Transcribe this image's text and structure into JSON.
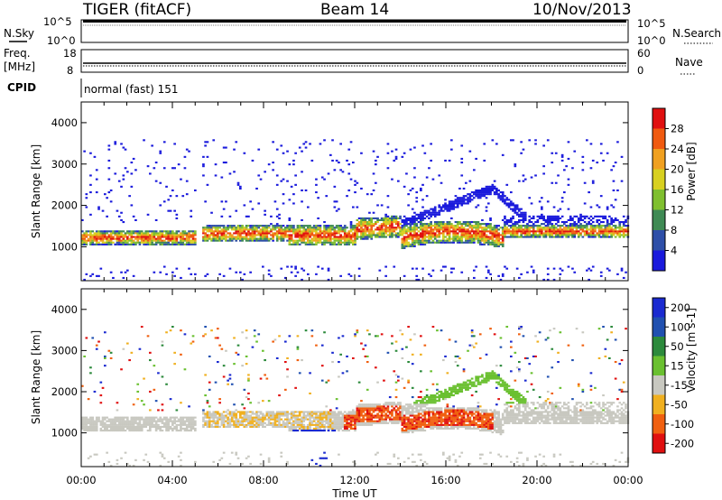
{
  "header": {
    "station": "TIGER (fitACF)",
    "beam": "Beam 14",
    "date": "10/Nov/2013"
  },
  "status_panels": {
    "nsky": {
      "label": "N.Sky",
      "ticks": [
        "10^5",
        "10^0"
      ]
    },
    "nsearch": {
      "label": "N.Search",
      "ticks": [
        "10^5",
        "10^0"
      ]
    },
    "freq": {
      "label_line1": "Freq.",
      "label_line2": "[MHz]",
      "ticks": [
        "18",
        "8"
      ]
    },
    "nave": {
      "label": "Nave",
      "ticks": [
        "60",
        "0"
      ]
    },
    "cpid": {
      "label": "CPID",
      "value": "normal (fast) 151"
    }
  },
  "chart_data": [
    {
      "type": "heatmap",
      "title": "",
      "parameter": "Power",
      "unit": "dB",
      "colorbar_label": "Power [dB]",
      "ylabel": "Slant Range [km]",
      "xlabel": "Time UT",
      "x_ticks": [
        "00:00",
        "04:00",
        "08:00",
        "12:00",
        "16:00",
        "20:00",
        "00:00"
      ],
      "y_ticks": [
        "1000",
        "2000",
        "3000",
        "4000"
      ],
      "xlim_hours": [
        0,
        24
      ],
      "ylim_km": [
        180,
        4500
      ],
      "colorbar_ticks": [
        "4",
        "8",
        "12",
        "16",
        "20",
        "24",
        "28"
      ],
      "colorbar_range": [
        0,
        32
      ],
      "colors": [
        "#1a1adc",
        "#2e4fa8",
        "#3f8a54",
        "#7fbf2f",
        "#d8d020",
        "#f0a020",
        "#f05a10",
        "#e01010"
      ]
    },
    {
      "type": "heatmap",
      "title": "",
      "parameter": "Velocity",
      "unit": "m s^-1",
      "colorbar_label": "Velocity [m s-1]",
      "ylabel": "Slant Range [km]",
      "xlabel": "Time UT",
      "x_ticks": [
        "00:00",
        "04:00",
        "08:00",
        "12:00",
        "16:00",
        "20:00",
        "00:00"
      ],
      "y_ticks": [
        "1000",
        "2000",
        "3000",
        "4000"
      ],
      "xlim_hours": [
        0,
        24
      ],
      "ylim_km": [
        180,
        4500
      ],
      "colorbar_ticks": [
        "200",
        "100",
        "50",
        "15",
        "-15",
        "-50",
        "-100",
        "-200"
      ],
      "colors": [
        "#1a2ad0",
        "#2050b0",
        "#2c8a3c",
        "#6ac030",
        "#c8c8c0",
        "#f0b020",
        "#f06010",
        "#e01010"
      ]
    }
  ],
  "axis": {
    "time_label": "Time UT"
  }
}
